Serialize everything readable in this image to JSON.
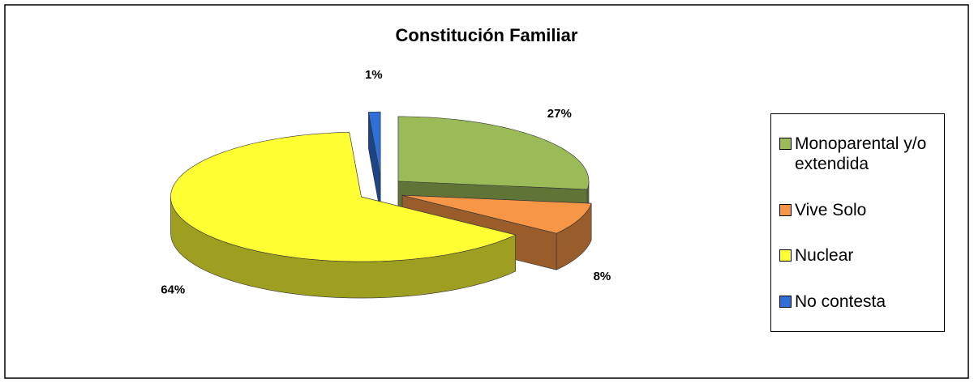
{
  "chart_data": {
    "type": "pie",
    "title": "Constitución Familiar",
    "categories": [
      "Monoparental y/o extendida",
      "Vive Solo",
      "Nuclear",
      "No contesta"
    ],
    "values": [
      27,
      8,
      64,
      1
    ],
    "value_labels": [
      "27%",
      "8%",
      "64%",
      "1%"
    ],
    "colors": [
      "#9bbb59",
      "#f79646",
      "#ffff33",
      "#2f6fd6"
    ],
    "legend": "right"
  }
}
